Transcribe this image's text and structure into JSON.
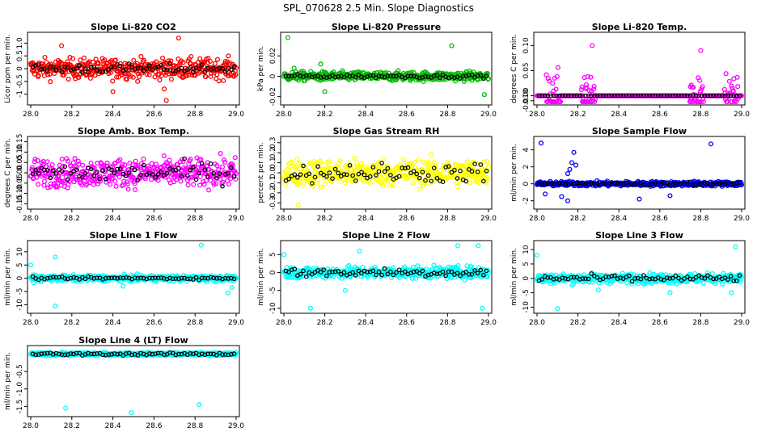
{
  "figure": {
    "title": "SPL_070628  2.5 Min. Slope Diagnostics"
  },
  "chart_data": [
    {
      "type": "scatter",
      "title": "Slope Li-820 CO2",
      "ylabel": "Licor ppm per min.",
      "color": "#ff0000",
      "xlim": [
        28.0,
        29.0
      ],
      "ylim": [
        -1.3,
        1.3
      ],
      "xticks": [
        28.0,
        28.2,
        28.4,
        28.6,
        28.8,
        29.0
      ],
      "xtick_labels": [
        "28.0",
        "28.2",
        "28.4",
        "28.6",
        "28.8",
        "29.0"
      ],
      "yticks": [
        -1.0,
        -0.5,
        0.0,
        0.5,
        1.0
      ],
      "ytick_labels": [
        "-1",
        "-0.5",
        "0",
        "0.5",
        "1.0"
      ],
      "center": 0.0,
      "spread": 0.35,
      "black_spread": 0.15,
      "outliers": [
        [
          28.65,
          -0.8
        ],
        [
          28.72,
          1.2
        ],
        [
          28.66,
          -1.25
        ],
        [
          28.15,
          0.9
        ],
        [
          28.4,
          -0.9
        ]
      ]
    },
    {
      "type": "scatter",
      "title": "Slope Li-820 Pressure",
      "ylabel": "kPa per min.",
      "color": "#00bb00",
      "xlim": [
        28.0,
        29.0
      ],
      "ylim": [
        -0.025,
        0.04
      ],
      "xticks": [
        28.0,
        28.2,
        28.4,
        28.6,
        28.8,
        29.0
      ],
      "xtick_labels": [
        "28.0",
        "28.2",
        "28.4",
        "28.6",
        "28.8",
        "29.0"
      ],
      "yticks": [
        -0.02,
        0.0,
        0.02
      ],
      "ytick_labels": [
        "-0.02",
        "0",
        "0.02"
      ],
      "center": 0.0,
      "spread": 0.004,
      "black_spread": 0.0015,
      "outliers": [
        [
          28.02,
          0.038
        ],
        [
          28.18,
          0.012
        ],
        [
          28.2,
          -0.015
        ],
        [
          28.82,
          0.03
        ],
        [
          28.98,
          -0.018
        ],
        [
          28.05,
          0.008
        ]
      ]
    },
    {
      "type": "scatter",
      "title": "Slope Li-820 Temp.",
      "ylabel": "degrees C per min.",
      "color": "#ff00ff",
      "xlim": [
        28.0,
        29.0
      ],
      "ylim": [
        -0.012,
        0.12
      ],
      "xticks": [
        28.0,
        28.2,
        28.4,
        28.6,
        28.8,
        29.0
      ],
      "xtick_labels": [
        "28.0",
        "28.2",
        "28.4",
        "28.6",
        "28.8",
        "29.0"
      ],
      "yticks": [
        -0.01,
        0.0,
        0.05,
        0.1
      ],
      "ytick_labels": [
        "-0.010",
        "0.00",
        "0.05",
        "0.10"
      ],
      "center": 0.0,
      "spread": 0.0,
      "black_spread": 0.0,
      "bursts": [
        [
          28.08,
          0.05
        ],
        [
          28.25,
          0.05
        ],
        [
          28.78,
          0.05
        ],
        [
          28.95,
          0.03
        ]
      ],
      "outliers": [
        [
          28.27,
          0.1
        ],
        [
          28.8,
          0.09
        ],
        [
          28.75,
          -0.01
        ]
      ]
    },
    {
      "type": "scatter",
      "title": "Slope Amb. Box Temp.",
      "ylabel": "degrees C per min.",
      "color": "#ff00ff",
      "xlim": [
        28.0,
        29.0
      ],
      "ylim": [
        -0.16,
        0.16
      ],
      "xticks": [
        28.0,
        28.2,
        28.4,
        28.6,
        28.8,
        29.0
      ],
      "xtick_labels": [
        "28.0",
        "28.2",
        "28.4",
        "28.6",
        "28.8",
        "29.0"
      ],
      "yticks": [
        -0.15,
        -0.1,
        -0.05,
        0.0,
        0.05,
        0.1,
        0.15
      ],
      "ytick_labels": [
        "-0.15",
        "-0.10",
        "-0.05",
        "0.00",
        "0.05",
        "0.10",
        "0.15"
      ],
      "center": 0.0,
      "spread": 0.06,
      "black_spread": 0.04,
      "outliers": []
    },
    {
      "type": "scatter",
      "title": "Slope Gas Stream RH",
      "ylabel": "percent per min.",
      "color": "#ffff00",
      "xlim": [
        28.0,
        29.0
      ],
      "ylim": [
        -0.33,
        0.33
      ],
      "xticks": [
        28.0,
        28.2,
        28.4,
        28.6,
        28.8,
        29.0
      ],
      "xtick_labels": [
        "28.0",
        "28.2",
        "28.4",
        "28.6",
        "28.8",
        "29.0"
      ],
      "yticks": [
        -0.3,
        -0.2,
        -0.1,
        0.0,
        0.1,
        0.2,
        0.3
      ],
      "ytick_labels": [
        "-0.3",
        "-0.2",
        "-0.1",
        "0.0",
        "0.1",
        "0.2",
        "0.3"
      ],
      "center": 0.0,
      "spread": 0.12,
      "black_spread": 0.08,
      "outliers": [
        [
          28.07,
          -0.32
        ]
      ]
    },
    {
      "type": "scatter",
      "title": "Slope Sample Flow",
      "ylabel": "ml/min per min.",
      "color": "#0000ff",
      "xlim": [
        28.0,
        29.0
      ],
      "ylim": [
        -2.6,
        5.2
      ],
      "xticks": [
        28.0,
        28.2,
        28.4,
        28.6,
        28.8,
        29.0
      ],
      "xtick_labels": [
        "28.0",
        "28.2",
        "28.4",
        "28.6",
        "28.8",
        "29.0"
      ],
      "yticks": [
        -2,
        0,
        2,
        4
      ],
      "ytick_labels": [
        "-2",
        "0",
        "2",
        "4"
      ],
      "center": 0.0,
      "spread": 0.25,
      "black_spread": 0.15,
      "outliers": [
        [
          28.02,
          4.8
        ],
        [
          28.18,
          3.7
        ],
        [
          28.17,
          2.5
        ],
        [
          28.16,
          1.7
        ],
        [
          28.15,
          1.2
        ],
        [
          28.19,
          2.2
        ],
        [
          28.85,
          4.7
        ],
        [
          28.15,
          -2.0
        ],
        [
          28.12,
          -1.5
        ],
        [
          28.5,
          -1.8
        ],
        [
          28.65,
          -1.4
        ],
        [
          28.04,
          -1.2
        ]
      ]
    },
    {
      "type": "scatter",
      "title": "Slope Line 1 Flow",
      "ylabel": "ml/min per min.",
      "color": "#00ffff",
      "xlim": [
        28.0,
        29.0
      ],
      "ylim": [
        -12,
        13
      ],
      "xticks": [
        28.0,
        28.2,
        28.4,
        28.6,
        28.8,
        29.0
      ],
      "xtick_labels": [
        "28.0",
        "28.2",
        "28.4",
        "28.6",
        "28.8",
        "29.0"
      ],
      "yticks": [
        -10,
        -5,
        0,
        5,
        10
      ],
      "ytick_labels": [
        "-10",
        "-5",
        "0",
        "5",
        "10"
      ],
      "center": 0.0,
      "spread": 1.0,
      "black_spread": 0.4,
      "outliers": [
        [
          28.12,
          -10.5
        ],
        [
          28.83,
          12.5
        ],
        [
          28.0,
          5.0
        ],
        [
          28.12,
          8.0
        ],
        [
          28.96,
          -5.5
        ],
        [
          28.98,
          -3.5
        ],
        [
          28.45,
          -3.0
        ]
      ]
    },
    {
      "type": "scatter",
      "title": "Slope Line 2 Flow",
      "ylabel": "ml/min per min.",
      "color": "#00ffff",
      "xlim": [
        28.0,
        29.0
      ],
      "ylim": [
        -10.5,
        8
      ],
      "xticks": [
        28.0,
        28.2,
        28.4,
        28.6,
        28.8,
        29.0
      ],
      "xtick_labels": [
        "28.0",
        "28.2",
        "28.4",
        "28.6",
        "28.8",
        "29.0"
      ],
      "yticks": [
        -10,
        -5,
        0,
        5
      ],
      "ytick_labels": [
        "-10",
        "-5",
        "0",
        "5"
      ],
      "center": 0.0,
      "spread": 1.5,
      "black_spread": 1.0,
      "outliers": [
        [
          28.13,
          -10.0
        ],
        [
          28.97,
          -10.0
        ],
        [
          28.95,
          7.5
        ],
        [
          28.85,
          7.5
        ],
        [
          28.37,
          6.0
        ],
        [
          28.0,
          5.0
        ],
        [
          28.3,
          -5.0
        ]
      ]
    },
    {
      "type": "scatter",
      "title": "Slope Line 3 Flow",
      "ylabel": "ml/min per min.",
      "color": "#00ffff",
      "xlim": [
        28.0,
        29.0
      ],
      "ylim": [
        -11,
        12
      ],
      "xticks": [
        28.0,
        28.2,
        28.4,
        28.6,
        28.8,
        29.0
      ],
      "xtick_labels": [
        "28.0",
        "28.2",
        "28.4",
        "28.6",
        "28.8",
        "29.0"
      ],
      "yticks": [
        -10,
        -5,
        0,
        5,
        10
      ],
      "ytick_labels": [
        "-10",
        "-5",
        "0",
        "5",
        "10"
      ],
      "center": 0.0,
      "spread": 1.5,
      "black_spread": 1.0,
      "outliers": [
        [
          28.1,
          -10.5
        ],
        [
          28.97,
          11.0
        ],
        [
          28.0,
          8.0
        ],
        [
          28.65,
          -5.0
        ],
        [
          28.95,
          -5.0
        ],
        [
          28.3,
          -4.0
        ]
      ]
    },
    {
      "type": "scatter",
      "title": "Slope Line 4 (LT) Flow",
      "ylabel": "ml/min per min.",
      "color": "#00ffff",
      "xlim": [
        28.0,
        29.0
      ],
      "ylim": [
        -1.7,
        0.15
      ],
      "xticks": [
        28.0,
        28.2,
        28.4,
        28.6,
        28.8,
        29.0
      ],
      "xtick_labels": [
        "28.0",
        "28.2",
        "28.4",
        "28.6",
        "28.8",
        "29.0"
      ],
      "yticks": [
        -1.5,
        -1.0,
        -0.5
      ],
      "ytick_labels": [
        "-1.5",
        "-1.0",
        "-0.5"
      ],
      "center": 0.0,
      "spread": 0.04,
      "black_spread": 0.03,
      "outliers": [
        [
          28.17,
          -1.55
        ],
        [
          28.82,
          -1.45
        ],
        [
          28.49,
          -1.68
        ]
      ]
    }
  ]
}
